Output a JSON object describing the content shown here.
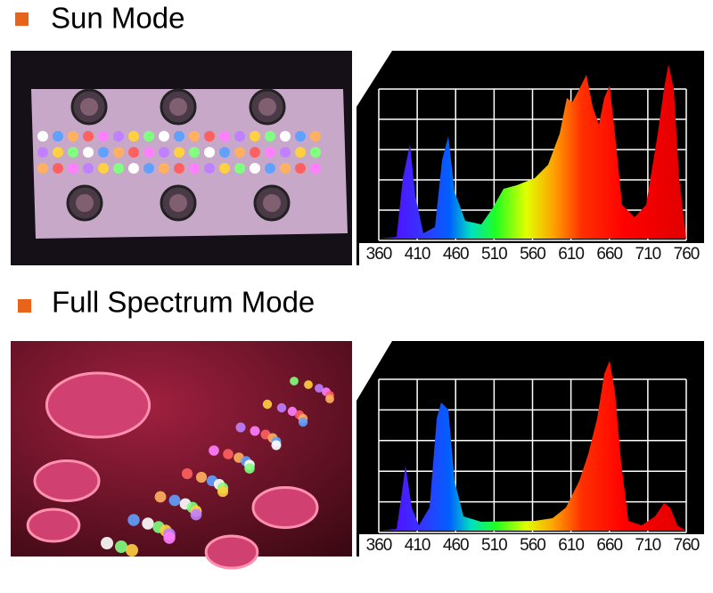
{
  "sections": [
    {
      "title": "Sun Mode",
      "spectrum_ticks": [
        360,
        410,
        460,
        510,
        560,
        610,
        660,
        710,
        760
      ]
    },
    {
      "title": "Full Spectrum Mode",
      "spectrum_ticks": [
        360,
        410,
        460,
        510,
        560,
        610,
        660,
        710,
        760
      ]
    }
  ]
}
